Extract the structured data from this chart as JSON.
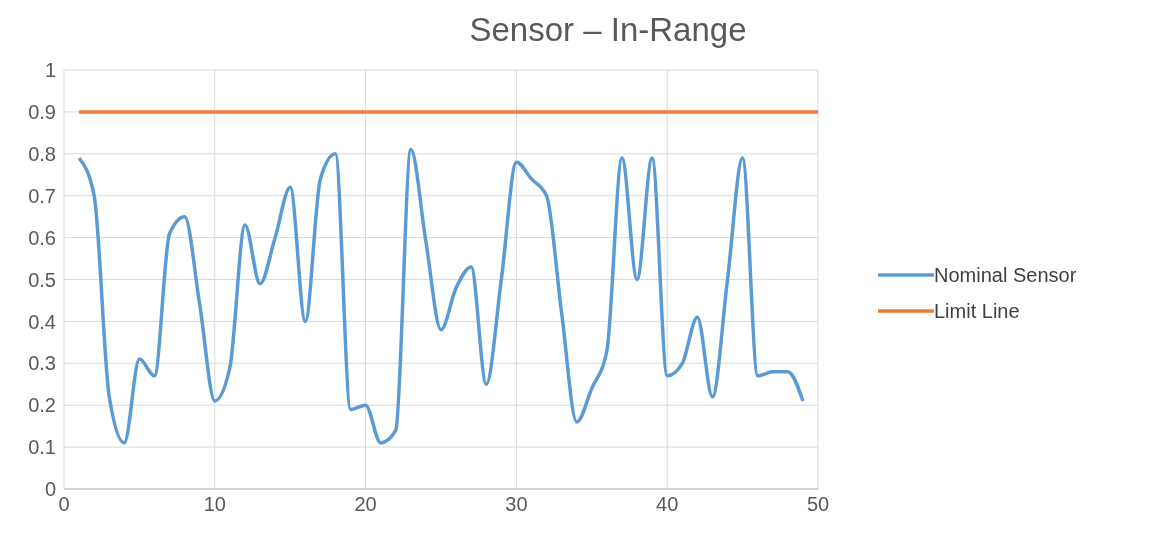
{
  "chart_data": {
    "type": "line",
    "title": "Sensor – In-Range",
    "xlim": [
      0,
      50
    ],
    "xticks": [
      0,
      10,
      20,
      30,
      40,
      50
    ],
    "ylim": [
      0,
      1
    ],
    "yticks": [
      0,
      0.1,
      0.2,
      0.3,
      0.4,
      0.5,
      0.6,
      0.7,
      0.8,
      0.9,
      1
    ],
    "grid": true,
    "legend": "right",
    "marker": "none",
    "line_style": "solid",
    "series": [
      {
        "name": "Nominal Sensor",
        "color": "#5b9bd5",
        "x": [
          1,
          2,
          3,
          4,
          5,
          6,
          7,
          8,
          9,
          10,
          11,
          12,
          13,
          14,
          15,
          16,
          17,
          18,
          19,
          20,
          21,
          22,
          23,
          24,
          25,
          26,
          27,
          28,
          29,
          30,
          31,
          32,
          33,
          34,
          35,
          36,
          37,
          38,
          39,
          40,
          41,
          42,
          43,
          44,
          45,
          46,
          47,
          48,
          49
        ],
        "values": [
          0.79,
          0.7,
          0.22,
          0.11,
          0.31,
          0.27,
          0.61,
          0.65,
          0.44,
          0.21,
          0.29,
          0.63,
          0.49,
          0.6,
          0.72,
          0.4,
          0.74,
          0.8,
          0.19,
          0.2,
          0.11,
          0.14,
          0.81,
          0.59,
          0.38,
          0.48,
          0.53,
          0.25,
          0.5,
          0.78,
          0.74,
          0.7,
          0.42,
          0.16,
          0.24,
          0.33,
          0.79,
          0.5,
          0.79,
          0.27,
          0.3,
          0.41,
          0.22,
          0.5,
          0.79,
          0.27,
          0.28,
          0.28,
          0.21
        ]
      },
      {
        "name": "Limit Line",
        "color": "#ed7d31",
        "x": [
          1,
          50
        ],
        "values": [
          0.9,
          0.9
        ]
      }
    ]
  }
}
